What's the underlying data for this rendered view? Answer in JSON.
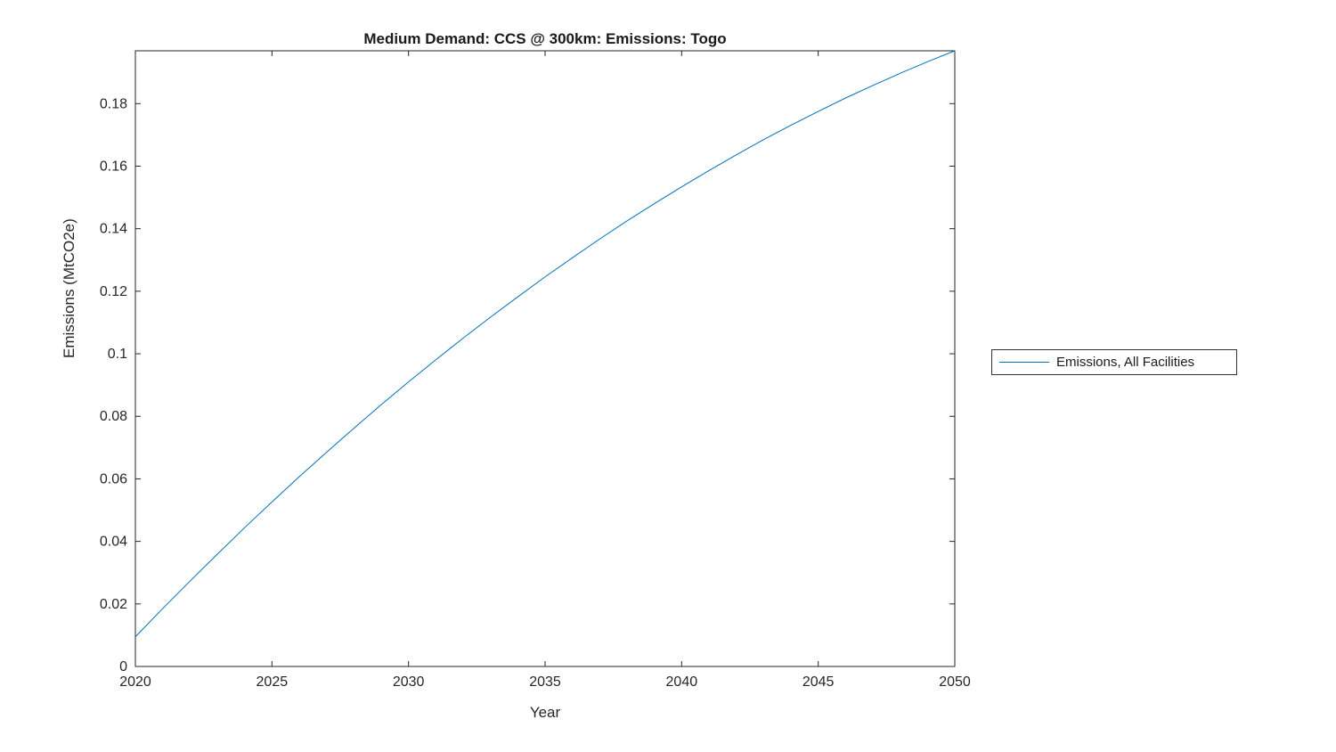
{
  "chart_data": {
    "type": "line",
    "title": "Medium Demand: CCS @ 300km: Emissions: Togo",
    "xlabel": "Year",
    "ylabel": "Emissions (MtCO2e)",
    "xlim": [
      2020,
      2050
    ],
    "ylim": [
      0,
      0.1969
    ],
    "xticks": [
      2020,
      2025,
      2030,
      2035,
      2040,
      2045,
      2050
    ],
    "yticks": [
      0,
      0.02,
      0.04,
      0.06,
      0.08,
      0.1,
      0.12,
      0.14,
      0.16,
      0.18
    ],
    "grid": false,
    "legend": {
      "position": "right-outside",
      "entries": [
        "Emissions, All Facilities"
      ]
    },
    "series": [
      {
        "name": "Emissions, All Facilities",
        "color": "#0072BD",
        "x": [
          2020,
          2021,
          2022,
          2023,
          2024,
          2025,
          2026,
          2027,
          2028,
          2029,
          2030,
          2031,
          2032,
          2033,
          2034,
          2035,
          2036,
          2037,
          2038,
          2039,
          2040,
          2041,
          2042,
          2043,
          2044,
          2045,
          2046,
          2047,
          2048,
          2049,
          2050
        ],
        "values": [
          0.0095,
          0.0185,
          0.0273,
          0.0359,
          0.0444,
          0.0526,
          0.0607,
          0.0685,
          0.0762,
          0.0837,
          0.091,
          0.0981,
          0.105,
          0.1117,
          0.1182,
          0.1246,
          0.1307,
          0.1367,
          0.1425,
          0.148,
          0.1534,
          0.1586,
          0.1636,
          0.1685,
          0.1731,
          0.1775,
          0.1818,
          0.1858,
          0.1897,
          0.1934,
          0.1969
        ]
      }
    ],
    "axis_color": "#262626",
    "background_color": "#ffffff"
  }
}
